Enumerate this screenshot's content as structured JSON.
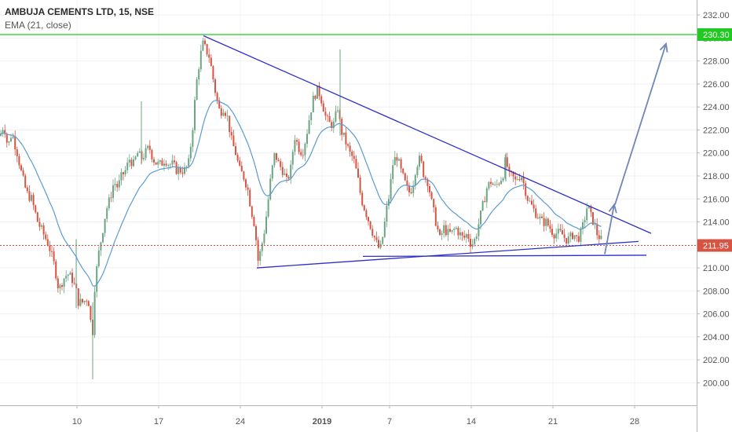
{
  "legend": {
    "symbol": "AMBUJA CEMENTS LTD, 15, NSE",
    "indicator": "EMA (21, close)"
  },
  "colors": {
    "up_candle": "#6ba583",
    "down_candle": "#d75442",
    "ema": "#5a9bd4",
    "trendline": "#2f2fc8",
    "arrow": "#6f86b8",
    "resistance_line": "#22c922",
    "price_line": "#d75442",
    "axis_text": "#555555"
  },
  "chart_data": {
    "type": "candlestick",
    "y_axis": {
      "ylim": [
        199,
        233
      ],
      "ticks": [
        "200.00",
        "202.00",
        "204.00",
        "206.00",
        "208.00",
        "210.00",
        "212.00",
        "214.00",
        "216.00",
        "218.00",
        "220.00",
        "222.00",
        "224.00",
        "226.00",
        "228.00",
        "230.00",
        "232.00"
      ]
    },
    "x_axis": {
      "ticks": [
        "10",
        "17",
        "24",
        "2019",
        "7",
        "14",
        "21",
        "28"
      ]
    },
    "price_labels": {
      "horizontal_level": "230.30",
      "last_price": "211.95"
    },
    "horizontal_level_value": 230.3,
    "last_price_value": 211.95,
    "anchors": [
      [
        0,
        221.5
      ],
      [
        5,
        222.5
      ],
      [
        10,
        220.5
      ],
      [
        15,
        221.8
      ],
      [
        22,
        220
      ],
      [
        28,
        218
      ],
      [
        34,
        216.5
      ],
      [
        40,
        216
      ],
      [
        48,
        214
      ],
      [
        55,
        213
      ],
      [
        62,
        212
      ],
      [
        70,
        210
      ],
      [
        75,
        208
      ],
      [
        80,
        209
      ],
      [
        86,
        209.5
      ],
      [
        92,
        209
      ],
      [
        97,
        208
      ],
      [
        100,
        207
      ],
      [
        106,
        207
      ],
      [
        112,
        207.5
      ],
      [
        116,
        205
      ],
      [
        118,
        204.5
      ],
      [
        120,
        208
      ],
      [
        125,
        211
      ],
      [
        130,
        213
      ],
      [
        135,
        215
      ],
      [
        140,
        216
      ],
      [
        145,
        217.5
      ],
      [
        150,
        217
      ],
      [
        155,
        218
      ],
      [
        160,
        218.5
      ],
      [
        165,
        219.5
      ],
      [
        170,
        219
      ],
      [
        175,
        220
      ],
      [
        180,
        219.5
      ],
      [
        185,
        220
      ],
      [
        190,
        220.5
      ],
      [
        195,
        219.5
      ],
      [
        200,
        219
      ],
      [
        205,
        219
      ],
      [
        210,
        219.5
      ],
      [
        215,
        219
      ],
      [
        220,
        219
      ],
      [
        225,
        218.5
      ],
      [
        230,
        218.5
      ],
      [
        235,
        218.5
      ],
      [
        240,
        219
      ],
      [
        245,
        222
      ],
      [
        250,
        226
      ],
      [
        254,
        228
      ],
      [
        258,
        229.5
      ],
      [
        262,
        229
      ],
      [
        266,
        228.5
      ],
      [
        270,
        227
      ],
      [
        275,
        225
      ],
      [
        280,
        223.5
      ],
      [
        285,
        224
      ],
      [
        290,
        223
      ],
      [
        295,
        221
      ],
      [
        300,
        220
      ],
      [
        305,
        218.5
      ],
      [
        310,
        218
      ],
      [
        315,
        217
      ],
      [
        320,
        215
      ],
      [
        325,
        213.5
      ],
      [
        328,
        210.5
      ],
      [
        332,
        211.5
      ],
      [
        336,
        213
      ],
      [
        340,
        215
      ],
      [
        345,
        218
      ],
      [
        350,
        220
      ],
      [
        355,
        219
      ],
      [
        360,
        218.5
      ],
      [
        365,
        217.5
      ],
      [
        370,
        218.5
      ],
      [
        375,
        221.5
      ],
      [
        380,
        220.5
      ],
      [
        385,
        220
      ],
      [
        390,
        221.5
      ],
      [
        395,
        223.5
      ],
      [
        400,
        225
      ],
      [
        405,
        225.5
      ],
      [
        410,
        224.5
      ],
      [
        415,
        223
      ],
      [
        420,
        222.5
      ],
      [
        425,
        222.5
      ],
      [
        430,
        224
      ],
      [
        434,
        222
      ],
      [
        440,
        221
      ],
      [
        445,
        220
      ],
      [
        450,
        219.5
      ],
      [
        455,
        218
      ],
      [
        460,
        216
      ],
      [
        465,
        215
      ],
      [
        470,
        214
      ],
      [
        475,
        213
      ],
      [
        480,
        212
      ],
      [
        484,
        211.5
      ],
      [
        488,
        213
      ],
      [
        492,
        215
      ],
      [
        496,
        216.5
      ],
      [
        500,
        219
      ],
      [
        505,
        219.8
      ],
      [
        510,
        218.5
      ],
      [
        515,
        217.5
      ],
      [
        520,
        216.5
      ],
      [
        525,
        217
      ],
      [
        530,
        219
      ],
      [
        535,
        219.5
      ],
      [
        540,
        218
      ],
      [
        545,
        217.5
      ],
      [
        550,
        215.5
      ],
      [
        555,
        214
      ],
      [
        560,
        212.5
      ],
      [
        565,
        213.5
      ],
      [
        570,
        213
      ],
      [
        575,
        213
      ],
      [
        580,
        213.5
      ],
      [
        585,
        213
      ],
      [
        590,
        212.5
      ],
      [
        595,
        213
      ],
      [
        600,
        212
      ],
      [
        605,
        212.5
      ],
      [
        610,
        214
      ],
      [
        615,
        215.5
      ],
      [
        620,
        217
      ],
      [
        625,
        217.5
      ],
      [
        630,
        217
      ],
      [
        635,
        217.5
      ],
      [
        640,
        218
      ],
      [
        644,
        219.5
      ],
      [
        648,
        218
      ],
      [
        652,
        218
      ],
      [
        656,
        217.5
      ],
      [
        660,
        218
      ],
      [
        664,
        218
      ],
      [
        668,
        217
      ],
      [
        672,
        216
      ],
      [
        676,
        215.5
      ],
      [
        680,
        215
      ],
      [
        685,
        214.5
      ],
      [
        690,
        214
      ],
      [
        695,
        214
      ],
      [
        700,
        213.5
      ],
      [
        705,
        213
      ],
      [
        710,
        213
      ],
      [
        715,
        213
      ],
      [
        720,
        212.5
      ],
      [
        725,
        212.5
      ],
      [
        730,
        213
      ],
      [
        735,
        212.5
      ],
      [
        740,
        213
      ],
      [
        745,
        214.5
      ],
      [
        748,
        215.5
      ],
      [
        752,
        214.5
      ],
      [
        756,
        214
      ],
      [
        760,
        213
      ],
      [
        765,
        212.5
      ],
      [
        768,
        212
      ]
    ],
    "spikes": [
      {
        "x": 118,
        "high": 207,
        "low": 200.3
      },
      {
        "x": 433,
        "high": 229,
        "low": 221.5
      },
      {
        "x": 97,
        "high": 212.5,
        "low": 206.5
      },
      {
        "x": 180,
        "high": 224.5,
        "low": 219
      },
      {
        "x": 644,
        "high": 220,
        "low": 217.5
      }
    ],
    "trendlines": [
      {
        "name": "upper-trendline",
        "x1": 259,
        "y1": 230.2,
        "x2": 829,
        "y2": 213.0
      },
      {
        "name": "lower-trendline",
        "x1": 327,
        "y1": 210.0,
        "x2": 813,
        "y2": 212.3
      },
      {
        "name": "support-line",
        "x1": 462,
        "y1": 211.0,
        "x2": 823,
        "y2": 211.1
      }
    ],
    "arrows": [
      {
        "name": "small-arrow",
        "x1": 770,
        "y1": 211.2,
        "x2": 782,
        "y2": 215.5
      },
      {
        "name": "big-arrow",
        "x1": 783,
        "y1": 215.5,
        "x2": 848,
        "y2": 229.5
      }
    ]
  }
}
